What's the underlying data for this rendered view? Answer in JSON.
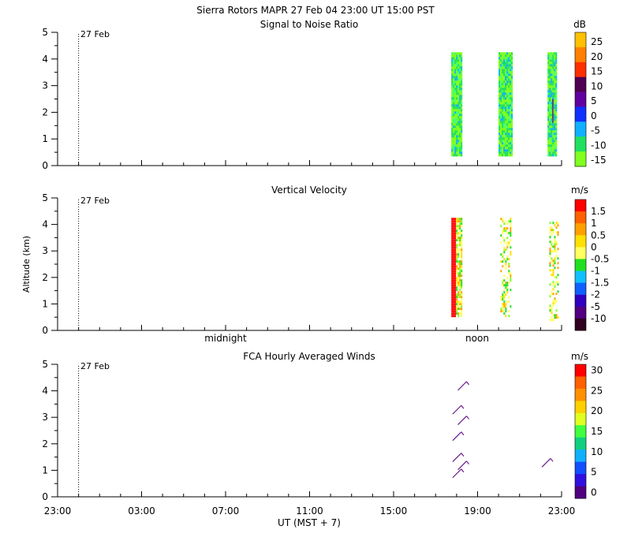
{
  "header": {
    "title": "Sierra Rotors   MAPR 27 Feb 04   23:00 UT   15:00   PST"
  },
  "chart_data": [
    {
      "type": "heatmap",
      "title": "Signal to Noise Ratio",
      "ylabel": "",
      "ylim": [
        0,
        5
      ],
      "yticks": [
        "0",
        "1",
        "2",
        "3",
        "4",
        "5"
      ],
      "date_marker": "27 Feb",
      "colorbar": {
        "unit": "dB",
        "labels": [
          "25",
          "20",
          "15",
          "10",
          "5",
          "0",
          "-5",
          "-10",
          "-15"
        ],
        "colors": [
          "#ffc000",
          "#ff8000",
          "#ff3000",
          "#500050",
          "#6000a0",
          "#1030ff",
          "#10b0ff",
          "#20e060",
          "#80ff20"
        ]
      },
      "segments": [
        {
          "start": "17:45",
          "end": "18:15",
          "bottom_km": 0.35,
          "top_km": 4.25
        },
        {
          "start": "20:00",
          "end": "20:40",
          "bottom_km": 0.35,
          "top_km": 4.25
        },
        {
          "start": "22:20",
          "end": "22:45",
          "bottom_km": 0.35,
          "top_km": 4.25
        }
      ]
    },
    {
      "type": "heatmap",
      "title": "Vertical Velocity",
      "ylabel": "Altitude (km)",
      "ylim": [
        0,
        5
      ],
      "yticks": [
        "0",
        "1",
        "2",
        "3",
        "4",
        "5"
      ],
      "date_marker": "27 Feb",
      "day_labels": [
        "midnight",
        "noon"
      ],
      "colorbar": {
        "unit": "m/s",
        "labels": [
          "1.5",
          "1",
          "0.5",
          "0",
          "-0.5",
          "-1",
          "-1.5",
          "-2",
          "-5",
          "-10"
        ],
        "colors": [
          "#ff0000",
          "#ff6000",
          "#ffa000",
          "#ffe000",
          "#ffff60",
          "#20e020",
          "#10c0ff",
          "#1060ff",
          "#3000c0",
          "#500080",
          "#300020"
        ]
      },
      "segments": [
        {
          "start": "17:45",
          "end": "18:15",
          "bottom_km": 0.55,
          "top_km": 4.25
        },
        {
          "start": "20:05",
          "end": "20:35",
          "bottom_km": 0.55,
          "top_km": 4.25
        },
        {
          "start": "22:25",
          "end": "22:50",
          "bottom_km": 0.35,
          "top_km": 4.1
        }
      ]
    },
    {
      "type": "scatter",
      "title": "FCA Hourly Averaged Winds",
      "ylabel": "",
      "ylim": [
        0,
        5
      ],
      "yticks": [
        "0",
        "1",
        "2",
        "3",
        "4",
        "5"
      ],
      "date_marker": "27 Feb",
      "xlabel": "UT  (MST + 7)",
      "xticks": [
        "23:00",
        "03:00",
        "07:00",
        "11:00",
        "15:00",
        "19:00",
        "23:00"
      ],
      "colorbar": {
        "unit": "m/s",
        "labels": [
          "30",
          "25",
          "20",
          "15",
          "10",
          "5",
          "0"
        ],
        "colors": [
          "#ff0000",
          "#ff6000",
          "#ff9000",
          "#ffd000",
          "#e0ff20",
          "#40ff40",
          "#10d080",
          "#10b0ff",
          "#1050ff",
          "#3010e0",
          "#500080"
        ]
      },
      "barbs": [
        {
          "time": "18:00",
          "altitude_km": 0.9
        },
        {
          "time": "18:00",
          "altitude_km": 1.5
        },
        {
          "time": "18:00",
          "altitude_km": 2.3
        },
        {
          "time": "18:00",
          "altitude_km": 3.3
        },
        {
          "time": "18:15",
          "altitude_km": 1.2
        },
        {
          "time": "18:15",
          "altitude_km": 2.9
        },
        {
          "time": "18:15",
          "altitude_km": 4.2
        },
        {
          "time": "22:15",
          "altitude_km": 1.3
        }
      ]
    }
  ]
}
